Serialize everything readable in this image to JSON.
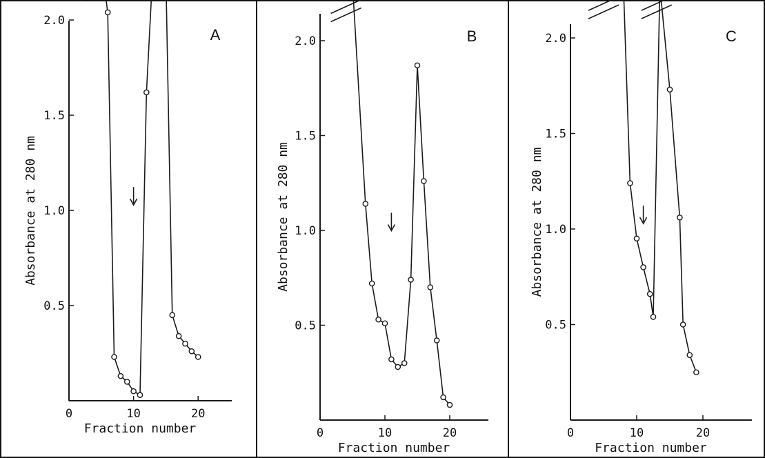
{
  "chart_data": [
    {
      "type": "line",
      "panel_label": "A",
      "xlabel": "Fraction number",
      "ylabel": "Absorbance at 280 nm",
      "xlim": [
        0,
        25
      ],
      "ylim": [
        0,
        2.5
      ],
      "x_ticks": [
        0,
        10,
        20
      ],
      "y_ticks": [
        0.5,
        1.0,
        1.5,
        2.0
      ],
      "x_tick_labels": [
        "0",
        "10",
        "20"
      ],
      "y_tick_labels": [
        "0.5",
        "1.0",
        "1.5",
        "2.0"
      ],
      "axis_breaks": [
        {
          "x": 4
        },
        {
          "x": 13
        }
      ],
      "arrow_at": {
        "x": 10,
        "y": 1.05
      },
      "series": [
        {
          "x": [
            5,
            6,
            7,
            8,
            9,
            10,
            11,
            12,
            13,
            14,
            15,
            16,
            17,
            18,
            19,
            20
          ],
          "y": [
            2.3,
            2.04,
            0.23,
            0.13,
            0.1,
            0.05,
            0.03,
            1.62,
            2.27,
            2.26,
            2.25,
            0.45,
            0.34,
            0.3,
            0.26,
            0.23
          ]
        }
      ]
    },
    {
      "type": "line",
      "panel_label": "B",
      "xlabel": "Fraction number",
      "ylabel": "Absorbance at 280 nm",
      "xlim": [
        0,
        25
      ],
      "ylim": [
        0,
        2.5
      ],
      "x_ticks": [
        0,
        10,
        20
      ],
      "y_ticks": [
        0.5,
        1.0,
        1.5,
        2.0
      ],
      "x_tick_labels": [
        "0",
        "10",
        "20"
      ],
      "y_tick_labels": [
        "0.5",
        "1.0",
        "1.5",
        "2.0"
      ],
      "axis_breaks": [
        {
          "x": 4
        }
      ],
      "arrow_at": {
        "x": 11,
        "y": 1.02
      },
      "series": [
        {
          "x": [
            5,
            7,
            8,
            9,
            10,
            11,
            12,
            13,
            14,
            15,
            16,
            17,
            18,
            19,
            20
          ],
          "y": [
            2.3,
            1.14,
            0.72,
            0.53,
            0.51,
            0.32,
            0.28,
            0.3,
            0.74,
            1.87,
            1.26,
            0.7,
            0.42,
            0.12,
            0.08
          ]
        }
      ]
    },
    {
      "type": "line",
      "panel_label": "C",
      "xlabel": "Fraction number",
      "ylabel": "Absorbance at 280 nm",
      "xlim": [
        0,
        25
      ],
      "ylim": [
        0,
        2.5
      ],
      "x_ticks": [
        0,
        10,
        20
      ],
      "y_ticks": [
        0.5,
        1.0,
        1.5,
        2.0
      ],
      "x_tick_labels": [
        "0",
        "10",
        "20"
      ],
      "y_tick_labels": [
        "0.5",
        "1.0",
        "1.5",
        "2.0"
      ],
      "axis_breaks": [
        {
          "x": 5
        },
        {
          "x": 13
        }
      ],
      "arrow_at": {
        "x": 11,
        "y": 1.05
      },
      "series": [
        {
          "x": [
            8,
            9,
            10,
            11,
            12,
            12.5,
            13.5,
            15,
            16.5,
            17,
            18,
            19
          ],
          "y": [
            2.27,
            1.24,
            0.95,
            0.8,
            0.66,
            0.54,
            2.27,
            1.73,
            1.06,
            0.5,
            0.34,
            0.25
          ]
        }
      ]
    }
  ],
  "style": {
    "line_color": "#1a1a1a",
    "marker_fill": "#ffffff",
    "border_color": "#111111"
  }
}
